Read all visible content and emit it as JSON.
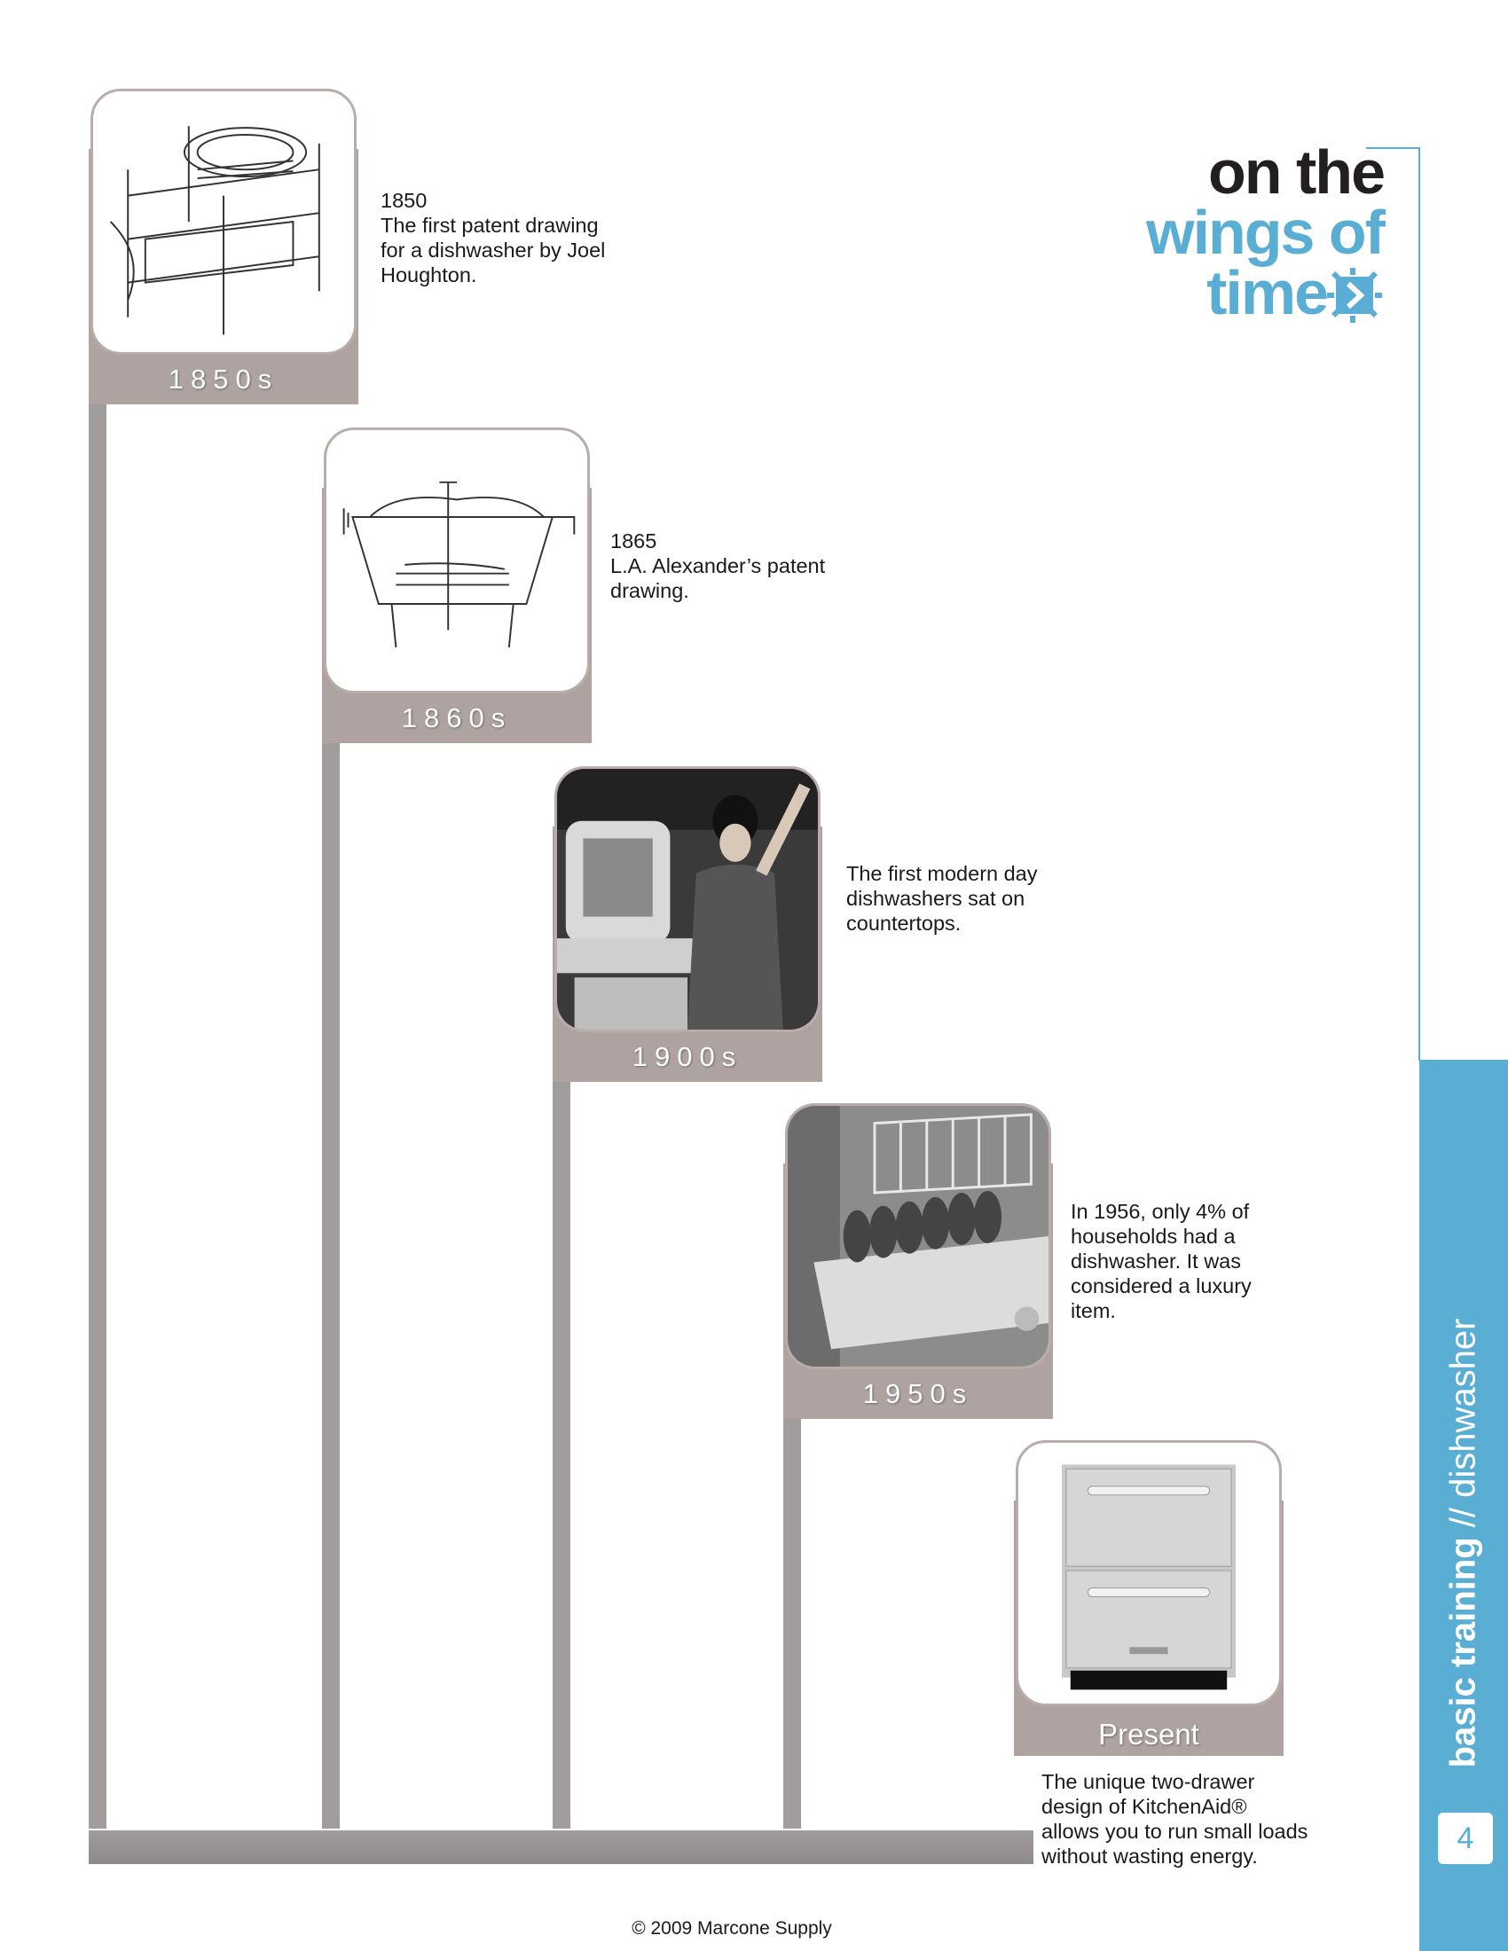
{
  "title": {
    "line1": "on the",
    "line2": "wings of",
    "line3": "time"
  },
  "sidebar": {
    "bold_text": "basic training",
    "light_text": " // dishwasher",
    "page_number": "4"
  },
  "entries": [
    {
      "decade": "1850s",
      "caption": [
        "1850",
        "The first patent drawing",
        "for a dishwasher by Joel",
        "Houghton."
      ],
      "image": "1850 patent drawing of a dishwasher"
    },
    {
      "decade": "1860s",
      "caption": [
        "1865",
        "L.A. Alexander’s patent",
        "drawing."
      ],
      "image": "1865 patent drawing of a dishwasher"
    },
    {
      "decade": "1900s",
      "caption": [
        "The first modern day",
        "dishwashers sat on",
        "countertops."
      ],
      "image": "photo of a woman with a countertop dishwasher"
    },
    {
      "decade": "1950s",
      "caption": [
        "In 1956, only 4% of",
        "households had a",
        "dishwasher.  It was",
        "considered a luxury",
        "item."
      ],
      "image": "photo of a dishwasher rack full of dishes"
    },
    {
      "decade": "Present",
      "caption": [
        "The unique two-drawer",
        "design of KitchenAid®",
        "allows you to run small loads",
        "without wasting energy."
      ],
      "image": "stainless steel two-drawer dishwasher"
    }
  ],
  "footer": "© 2009 Marcone Supply",
  "colors": {
    "accent_blue": "#5aaed3",
    "band_taupe": "#aea3a0",
    "bar_gray": "#a29d9d"
  },
  "icons": [
    "clock-icon"
  ]
}
